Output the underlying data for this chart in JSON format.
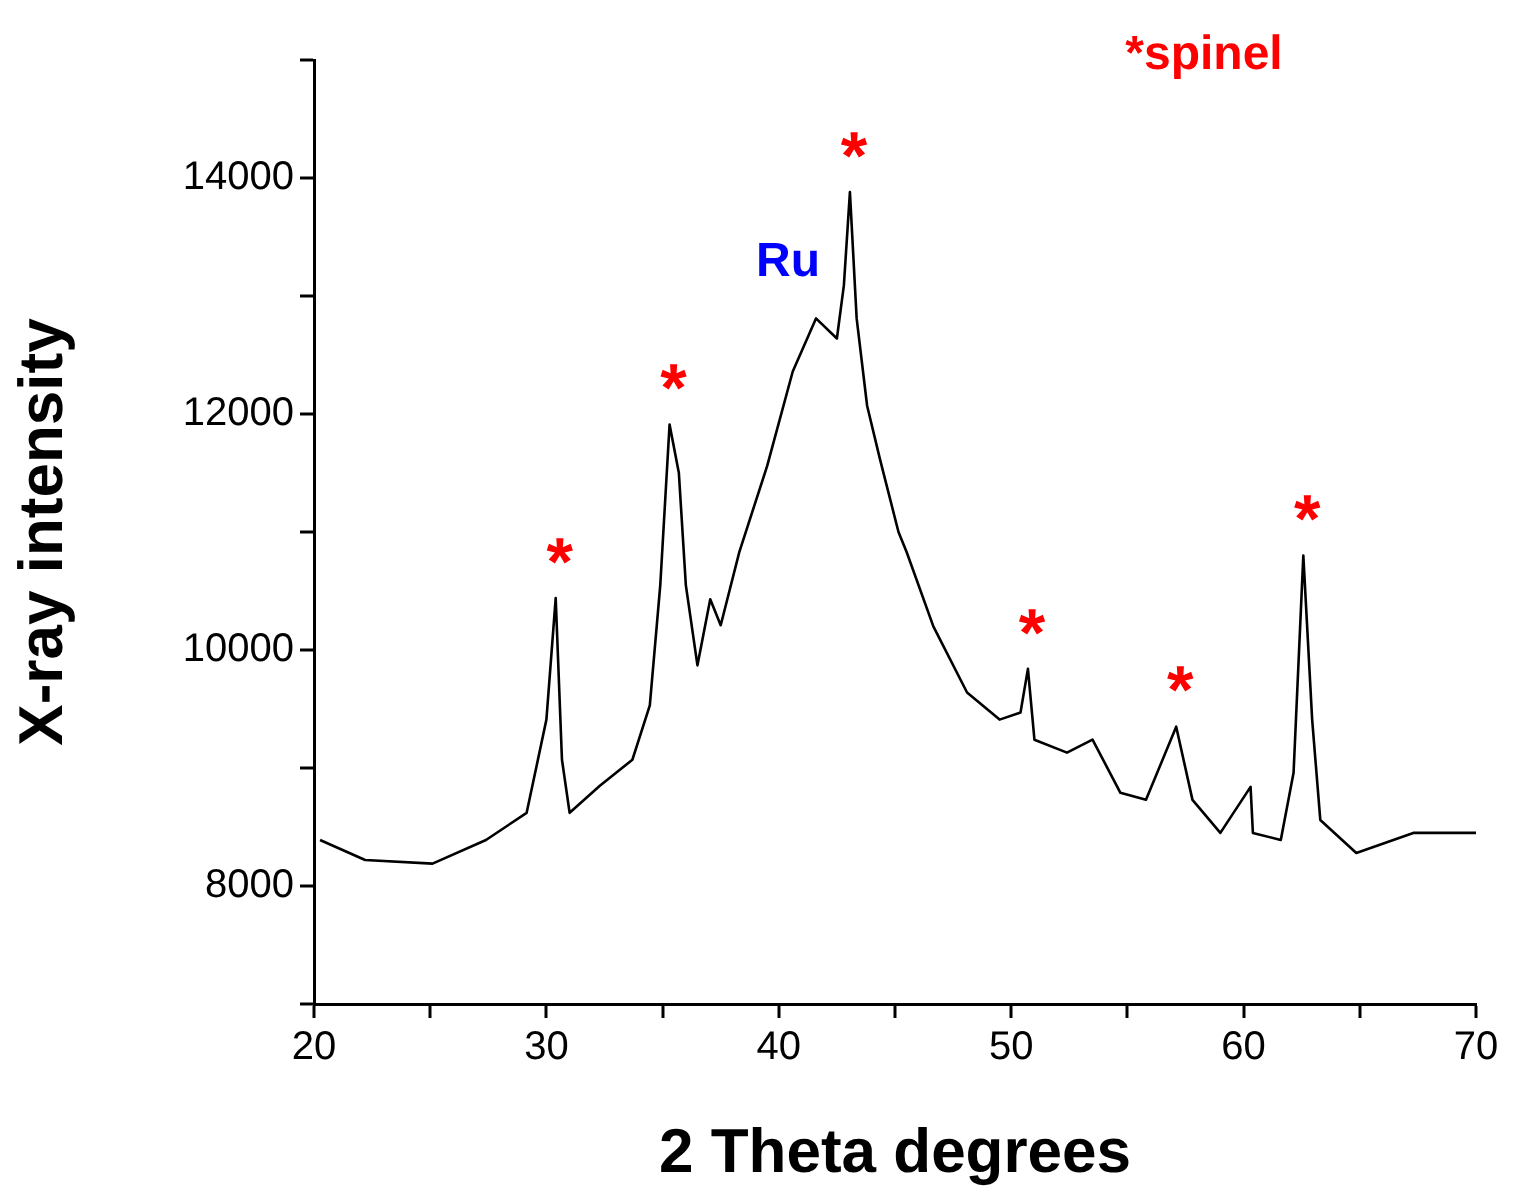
{
  "chart_data": {
    "type": "line",
    "xlabel": "2 Theta degrees",
    "ylabel": "X-ray intensity",
    "grid": false,
    "legend": false,
    "marker": "none",
    "line_style": "solid",
    "xlim": [
      20,
      70
    ],
    "xticks": [
      20,
      {
        "value": 25,
        "label": null
      },
      30,
      {
        "value": 35,
        "label": null
      },
      40,
      {
        "value": 45,
        "label": null
      },
      50,
      {
        "value": 55,
        "label": null
      },
      60,
      {
        "value": 65,
        "label": null
      },
      70
    ],
    "ylim": [
      7000,
      15000
    ],
    "yticks": [
      {
        "value": 7000,
        "label": null
      },
      8000,
      {
        "value": 9000,
        "label": null
      },
      10000,
      {
        "value": 11000,
        "label": null
      },
      12000,
      {
        "value": 13000,
        "label": null
      },
      14000,
      {
        "value": 15000,
        "label": null
      }
    ],
    "series": [
      {
        "color": "#000000",
        "x": [
          20.26,
          22.2,
          25.1,
          27.4,
          29.15,
          30.0,
          30.4,
          30.67,
          31.0,
          32.3,
          33.7,
          34.45,
          34.9,
          35.3,
          35.7,
          36.0,
          36.5,
          37.05,
          37.5,
          38.3,
          39.5,
          40.6,
          41.6,
          42.5,
          42.8,
          43.06,
          43.35,
          43.8,
          44.35,
          45.15,
          45.5,
          46.65,
          48.1,
          49.5,
          50.4,
          50.72,
          51.0,
          52.4,
          53.5,
          54.7,
          55.8,
          57.1,
          57.8,
          59.0,
          60.3,
          60.4,
          61.6,
          62.15,
          62.57,
          62.95,
          63.3,
          64.85,
          67.3,
          70.0
        ],
        "values": [
          8390,
          8220,
          8190,
          8390,
          8620,
          9410,
          10440,
          9070,
          8620,
          8850,
          9070,
          9530,
          10550,
          11910,
          11500,
          10550,
          9870,
          10430,
          10210,
          10830,
          11560,
          12360,
          12810,
          12640,
          13090,
          13880,
          12810,
          12070,
          11620,
          11000,
          10830,
          10200,
          9640,
          9410,
          9470,
          9840,
          9240,
          9130,
          9240,
          8790,
          8730,
          9350,
          8730,
          8450,
          8840,
          8450,
          8390,
          8960,
          10800,
          9410,
          8560,
          8280,
          8450,
          8450
        ]
      }
    ],
    "annotations": [
      "*spinel",
      {
        "text": "Ru",
        "x": 41.6,
        "y": 12810
      },
      {
        "text": "*",
        "x": 30.4,
        "y": 10440
      },
      {
        "text": "*",
        "x": 35.3,
        "y": 11910
      },
      {
        "text": "*",
        "x": 43.06,
        "y": 13880
      },
      {
        "text": "*",
        "x": 50.72,
        "y": 9840
      },
      {
        "text": "*",
        "x": 57.1,
        "y": 9350
      },
      {
        "text": "*",
        "x": 62.57,
        "y": 10800
      }
    ]
  }
}
